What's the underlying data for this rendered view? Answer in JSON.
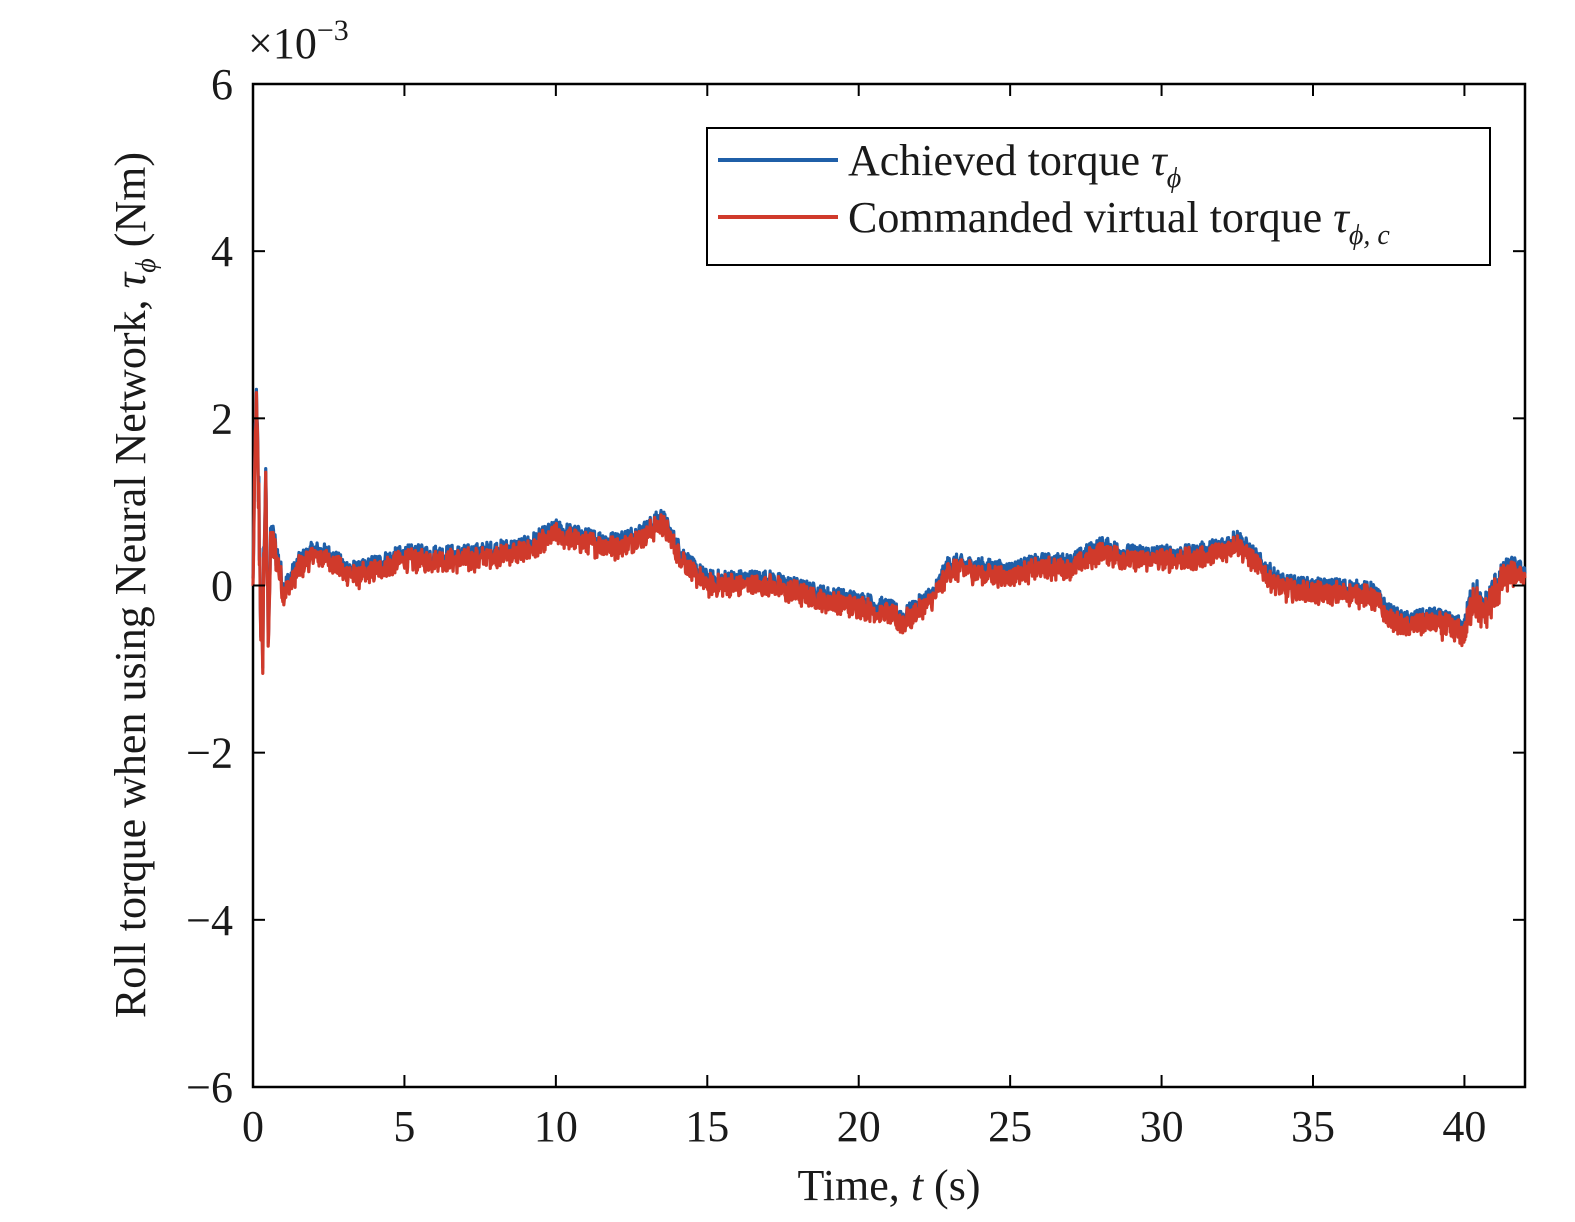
{
  "chart_data": {
    "type": "line",
    "xlabel": {
      "prefix": "Time, ",
      "var": "t",
      "suffix": " (s)"
    },
    "ylabel": {
      "text": "Roll torque when using Neural Network, ",
      "var": "τ",
      "sub": "ϕ",
      "unit": " (Nm)"
    },
    "y_scale_label": {
      "base": "×10",
      "exp": "−3"
    },
    "xlim": [
      0,
      42
    ],
    "ylim": [
      -6,
      6
    ],
    "xticks": [
      0,
      5,
      10,
      15,
      20,
      25,
      30,
      35,
      40
    ],
    "yticks": [
      -6,
      -4,
      -2,
      0,
      2,
      4,
      6
    ],
    "ytick_labels": [
      "−6",
      "−4",
      "−2",
      "0",
      "2",
      "4",
      "6"
    ],
    "grid": false,
    "legend_position": "top-right",
    "series": [
      {
        "name": "Achieved torque τϕ",
        "legend": {
          "text": "Achieved torque ",
          "var": "τ",
          "sub": "ϕ"
        },
        "color": "#1f5fa8",
        "y_offset": 0.07
      },
      {
        "name": "Commanded virtual torque τϕ, c",
        "legend": {
          "text": "Commanded virtual torque ",
          "var": "τ",
          "sub": "ϕ, c"
        },
        "color": "#d03a2b",
        "y_offset": 0.0
      }
    ],
    "x": [
      0,
      0.1,
      0.2,
      0.3,
      0.4,
      0.5,
      0.6,
      0.8,
      1.0,
      1.2,
      1.5,
      2.0,
      2.5,
      3.0,
      3.5,
      4.0,
      5.0,
      6.0,
      7.0,
      8.0,
      9.0,
      10.0,
      11.0,
      12.0,
      13.0,
      13.5,
      14.0,
      14.5,
      15.0,
      16.0,
      17.0,
      18.0,
      19.0,
      20.0,
      21.0,
      21.5,
      22.0,
      22.5,
      23.0,
      24.0,
      25.0,
      26.0,
      27.0,
      28.0,
      29.0,
      30.0,
      31.0,
      32.0,
      32.5,
      33.0,
      33.5,
      34.0,
      35.0,
      36.0,
      37.0,
      37.5,
      38.0,
      39.0,
      40.0,
      40.3,
      40.6,
      41.0,
      41.5,
      42.0
    ],
    "y_center": [
      0.0,
      2.2,
      0.8,
      -1.2,
      1.2,
      -0.5,
      0.5,
      0.3,
      -0.1,
      0.0,
      0.2,
      0.35,
      0.3,
      0.15,
      0.1,
      0.18,
      0.3,
      0.3,
      0.3,
      0.35,
      0.4,
      0.6,
      0.5,
      0.45,
      0.6,
      0.75,
      0.4,
      0.15,
      0.0,
      0.0,
      0.0,
      -0.1,
      -0.2,
      -0.25,
      -0.35,
      -0.45,
      -0.3,
      -0.15,
      0.2,
      0.15,
      0.1,
      0.2,
      0.2,
      0.4,
      0.3,
      0.3,
      0.3,
      0.4,
      0.5,
      0.3,
      0.1,
      -0.05,
      -0.1,
      -0.1,
      -0.15,
      -0.4,
      -0.5,
      -0.45,
      -0.6,
      -0.1,
      -0.4,
      -0.1,
      0.15,
      0.1
    ],
    "y_band_halfwidth": [
      0.05,
      0.3,
      0.6,
      0.5,
      0.6,
      0.4,
      0.3,
      0.2,
      0.15,
      0.12,
      0.12,
      0.12,
      0.12,
      0.12,
      0.12,
      0.12,
      0.12,
      0.12,
      0.12,
      0.12,
      0.12,
      0.12,
      0.12,
      0.12,
      0.12,
      0.12,
      0.12,
      0.12,
      0.12,
      0.12,
      0.12,
      0.12,
      0.12,
      0.12,
      0.12,
      0.12,
      0.12,
      0.12,
      0.12,
      0.12,
      0.12,
      0.12,
      0.12,
      0.12,
      0.12,
      0.12,
      0.12,
      0.12,
      0.12,
      0.12,
      0.12,
      0.12,
      0.12,
      0.12,
      0.12,
      0.12,
      0.12,
      0.12,
      0.15,
      0.25,
      0.2,
      0.2,
      0.15,
      0.1
    ]
  }
}
